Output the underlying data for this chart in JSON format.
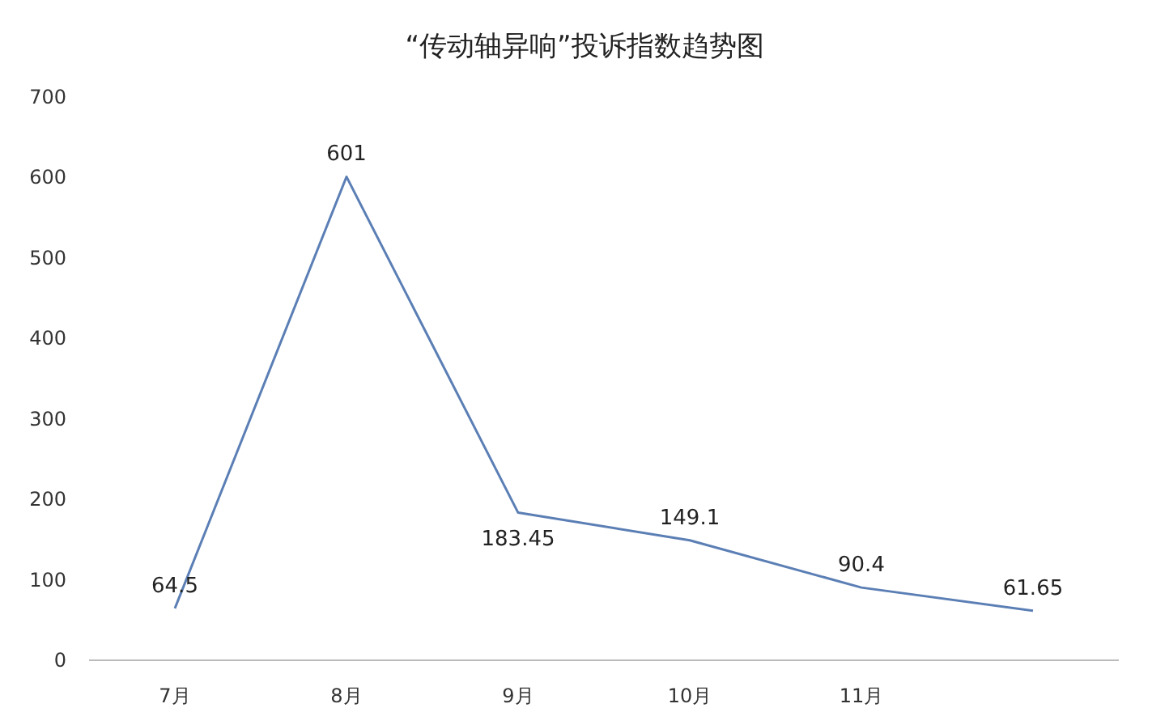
{
  "chart_data": {
    "type": "line",
    "title": "“传动轴异响”投诉指数趋势图",
    "categories": [
      "7月",
      "8月",
      "9月",
      "10月",
      "11月",
      null
    ],
    "values": [
      64.5,
      601,
      183.45,
      149.1,
      90.4,
      61.65
    ],
    "color": "#5b7fb5",
    "ylim": [
      0,
      700
    ],
    "yticks": [
      0,
      100,
      200,
      300,
      400,
      500,
      600,
      700
    ],
    "data_labels": true
  }
}
